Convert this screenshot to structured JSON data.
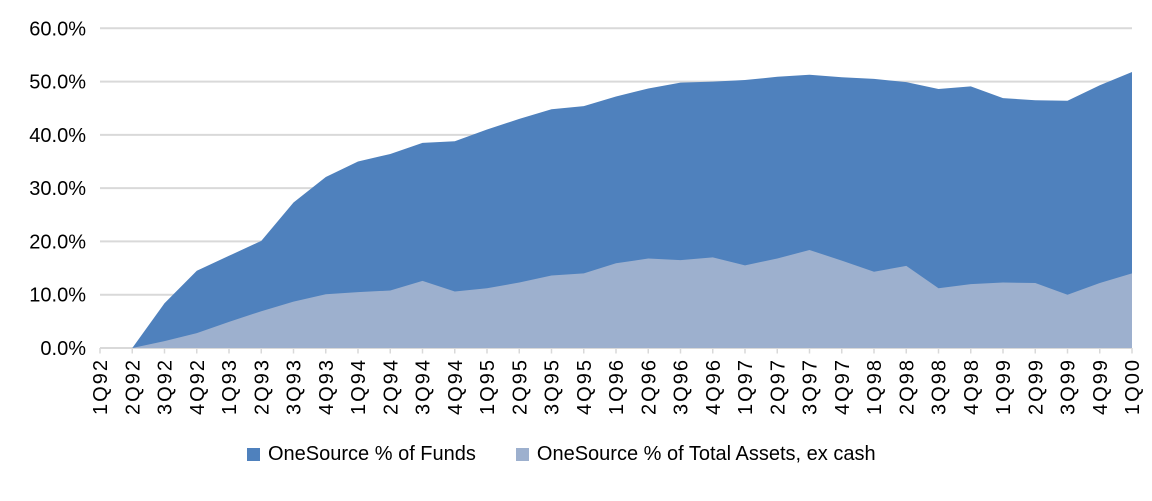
{
  "chart_data": {
    "type": "area",
    "mode": "overlapping",
    "title": "",
    "xlabel": "",
    "ylabel": "",
    "categories": [
      "1Q92",
      "2Q92",
      "3Q92",
      "4Q92",
      "1Q93",
      "2Q93",
      "3Q93",
      "4Q93",
      "1Q94",
      "2Q94",
      "3Q94",
      "4Q94",
      "1Q95",
      "2Q95",
      "3Q95",
      "4Q95",
      "1Q96",
      "2Q96",
      "3Q96",
      "4Q96",
      "1Q97",
      "2Q97",
      "3Q97",
      "4Q97",
      "1Q98",
      "2Q98",
      "3Q98",
      "4Q98",
      "1Q99",
      "2Q99",
      "3Q99",
      "4Q99",
      "1Q00"
    ],
    "series": [
      {
        "name": "OneSource % of Funds",
        "color": "#4F81BD",
        "values": [
          0.0,
          0.0,
          8.4,
          14.5,
          17.3,
          20.1,
          27.3,
          32.1,
          35.0,
          36.4,
          38.5,
          38.8,
          41.0,
          43.0,
          44.8,
          45.4,
          47.2,
          48.7,
          49.8,
          50.0,
          50.3,
          50.9,
          51.3,
          50.8,
          50.5,
          49.9,
          48.6,
          49.1,
          46.9,
          46.5,
          46.4,
          49.3,
          51.8
        ]
      },
      {
        "name": "OneSource % of Total Assets, ex cash",
        "color": "#9DB0CE",
        "values": [
          0.0,
          0.0,
          1.3,
          2.8,
          4.9,
          6.9,
          8.7,
          10.1,
          10.5,
          10.8,
          12.6,
          10.6,
          11.2,
          12.3,
          13.6,
          14.0,
          15.9,
          16.8,
          16.5,
          17.0,
          15.5,
          16.8,
          18.4,
          16.4,
          14.3,
          15.4,
          11.2,
          12.0,
          12.3,
          12.2,
          10.0,
          12.2,
          14.0
        ]
      }
    ],
    "ylim": [
      0,
      60
    ],
    "y_ticks": [
      {
        "value": 0,
        "label": "0.0%"
      },
      {
        "value": 10,
        "label": "10.0%"
      },
      {
        "value": 20,
        "label": "20.0%"
      },
      {
        "value": 30,
        "label": "30.0%"
      },
      {
        "value": 40,
        "label": "40.0%"
      },
      {
        "value": 50,
        "label": "50.0%"
      },
      {
        "value": 60,
        "label": "60.0%"
      }
    ],
    "grid": true,
    "gridline_color": "#D9D9D9",
    "tick_color": "#D9D9D9",
    "legend_position": "bottom"
  }
}
